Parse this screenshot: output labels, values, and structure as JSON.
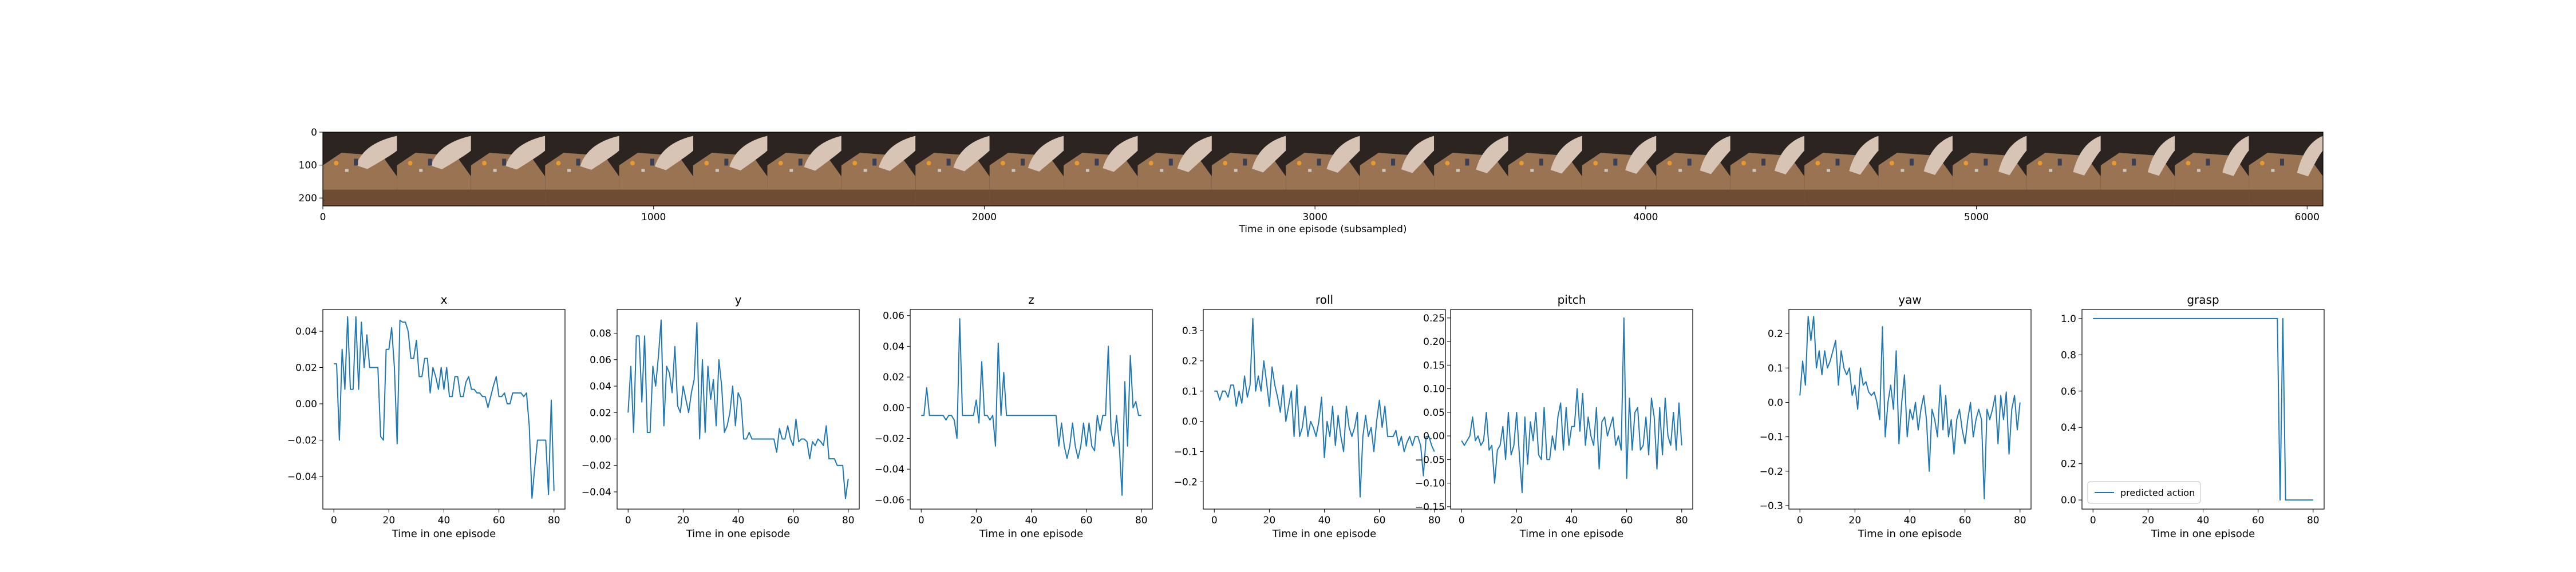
{
  "filmstrip": {
    "xlabel": "Time in one episode (subsampled)",
    "x_ticks": [
      "0",
      "1000",
      "2000",
      "3000",
      "4000",
      "5000",
      "6000"
    ],
    "y_ticks": [
      "0",
      "100",
      "200"
    ],
    "xlim": [
      0,
      6048
    ],
    "ylim": [
      0,
      224
    ],
    "frame_count": 27,
    "description_colors": {
      "background": "#2b2420",
      "table": "#9a7352",
      "robot": "#d8c4b4"
    }
  },
  "chart_data": [
    {
      "type": "line",
      "title": "x",
      "xlabel": "Time in one episode",
      "xlim": [
        -4,
        84
      ],
      "ylim": [
        -0.058,
        0.052
      ],
      "x_ticks": [
        0,
        20,
        40,
        60,
        80
      ],
      "y_ticks": [
        {
          "v": 0.04,
          "t": "0.04"
        },
        {
          "v": 0.02,
          "t": "0.02"
        },
        {
          "v": 0.0,
          "t": "0.00"
        },
        {
          "v": -0.02,
          "t": "−0.02"
        },
        {
          "v": -0.04,
          "t": "−0.04"
        }
      ],
      "series": [
        {
          "color": "#1f77b4",
          "values": [
            0.022,
            0.022,
            -0.02,
            0.03,
            0.008,
            0.048,
            0.008,
            0.008,
            0.048,
            0.008,
            0.045,
            0.02,
            0.038,
            0.02,
            0.02,
            0.02,
            0.02,
            -0.018,
            -0.02,
            0.03,
            0.03,
            0.042,
            0.02,
            -0.022,
            0.046,
            0.045,
            0.045,
            0.04,
            0.025,
            0.025,
            0.035,
            0.015,
            0.015,
            0.025,
            0.025,
            0.006,
            0.02,
            0.015,
            0.008,
            0.02,
            0.008,
            0.02,
            0.004,
            0.004,
            0.015,
            0.015,
            0.004,
            0.004,
            0.012,
            0.015,
            0.008,
            0.008,
            0.006,
            0.006,
            0.004,
            0.004,
            -0.002,
            0.004,
            0.01,
            0.015,
            0.004,
            0.004,
            0.006,
            0.0,
            0.0,
            0.006,
            0.006,
            0.006,
            0.006,
            0.004,
            0.006,
            -0.012,
            -0.052,
            -0.035,
            -0.02,
            -0.02,
            -0.02,
            -0.02,
            -0.05,
            0.002,
            -0.048
          ]
        }
      ]
    },
    {
      "type": "line",
      "title": "y",
      "xlabel": "Time in one episode",
      "xlim": [
        -4,
        84
      ],
      "ylim": [
        -0.053,
        0.098
      ],
      "x_ticks": [
        0,
        20,
        40,
        60,
        80
      ],
      "y_ticks": [
        {
          "v": 0.08,
          "t": "0.08"
        },
        {
          "v": 0.06,
          "t": "0.06"
        },
        {
          "v": 0.04,
          "t": "0.04"
        },
        {
          "v": 0.02,
          "t": "0.02"
        },
        {
          "v": 0.0,
          "t": "0.00"
        },
        {
          "v": -0.02,
          "t": "−0.02"
        },
        {
          "v": -0.04,
          "t": "−0.04"
        }
      ],
      "series": [
        {
          "color": "#1f77b4",
          "values": [
            0.02,
            0.055,
            0.005,
            0.078,
            0.078,
            0.028,
            0.078,
            0.005,
            0.005,
            0.055,
            0.04,
            0.062,
            0.09,
            0.01,
            0.055,
            0.05,
            0.035,
            0.07,
            0.025,
            0.02,
            0.04,
            0.03,
            0.02,
            0.035,
            0.045,
            0.088,
            0.0,
            0.06,
            0.005,
            0.055,
            0.03,
            0.045,
            0.01,
            0.06,
            0.04,
            0.005,
            0.01,
            0.02,
            0.04,
            0.01,
            0.035,
            0.03,
            0.0,
            0.0,
            0.005,
            0.0,
            0.0,
            0.0,
            0.0,
            0.0,
            0.0,
            0.0,
            0.0,
            0.0,
            -0.01,
            0.008,
            0.0,
            0.0,
            0.01,
            0.0,
            -0.005,
            0.015,
            -0.002,
            0.0,
            0.0,
            -0.002,
            -0.015,
            -0.002,
            -0.005,
            0.0,
            -0.002,
            -0.005,
            0.01,
            -0.015,
            -0.015,
            -0.015,
            -0.02,
            -0.02,
            -0.02,
            -0.045,
            -0.03
          ]
        }
      ]
    },
    {
      "type": "line",
      "title": "z",
      "xlabel": "Time in one episode",
      "xlim": [
        -4,
        84
      ],
      "ylim": [
        -0.066,
        0.064
      ],
      "x_ticks": [
        0,
        20,
        40,
        60,
        80
      ],
      "y_ticks": [
        {
          "v": 0.06,
          "t": "0.06"
        },
        {
          "v": 0.04,
          "t": "0.04"
        },
        {
          "v": 0.02,
          "t": "0.02"
        },
        {
          "v": 0.0,
          "t": "0.00"
        },
        {
          "v": -0.02,
          "t": "−0.02"
        },
        {
          "v": -0.04,
          "t": "−0.04"
        },
        {
          "v": -0.06,
          "t": "−0.06"
        }
      ],
      "series": [
        {
          "color": "#1f77b4",
          "values": [
            -0.005,
            -0.005,
            0.013,
            -0.005,
            -0.005,
            -0.005,
            -0.005,
            -0.005,
            -0.005,
            -0.008,
            -0.005,
            -0.005,
            -0.008,
            -0.02,
            0.058,
            -0.005,
            -0.005,
            -0.005,
            -0.005,
            -0.005,
            0.005,
            -0.01,
            0.03,
            -0.005,
            -0.005,
            -0.008,
            -0.005,
            -0.025,
            0.042,
            -0.005,
            0.023,
            -0.005,
            -0.005,
            -0.005,
            -0.005,
            -0.005,
            -0.005,
            -0.005,
            -0.005,
            -0.005,
            -0.005,
            -0.005,
            -0.005,
            -0.005,
            -0.005,
            -0.005,
            -0.005,
            -0.005,
            -0.005,
            -0.005,
            -0.025,
            -0.01,
            -0.025,
            -0.033,
            -0.025,
            -0.01,
            -0.025,
            -0.033,
            -0.025,
            -0.01,
            -0.025,
            -0.01,
            -0.025,
            -0.028,
            -0.005,
            -0.015,
            -0.005,
            -0.005,
            0.04,
            -0.015,
            -0.025,
            -0.005,
            -0.025,
            -0.057,
            0.017,
            -0.025,
            0.034,
            0.0,
            0.004,
            -0.005,
            -0.005
          ]
        }
      ]
    },
    {
      "type": "line",
      "title": "roll",
      "xlabel": "Time in one episode",
      "xlim": [
        -4,
        84
      ],
      "ylim": [
        -0.29,
        0.37
      ],
      "x_ticks": [
        0,
        20,
        40,
        60,
        80
      ],
      "y_ticks": [
        {
          "v": 0.3,
          "t": "0.3"
        },
        {
          "v": 0.2,
          "t": "0.2"
        },
        {
          "v": 0.1,
          "t": "0.1"
        },
        {
          "v": 0.0,
          "t": "0.0"
        },
        {
          "v": -0.1,
          "t": "−0.1"
        },
        {
          "v": -0.2,
          "t": "−0.2"
        }
      ],
      "series": [
        {
          "color": "#1f77b4",
          "values": [
            0.1,
            0.1,
            0.07,
            0.1,
            0.1,
            0.08,
            0.12,
            0.12,
            0.05,
            0.1,
            0.06,
            0.15,
            0.08,
            0.12,
            0.34,
            0.1,
            0.15,
            0.1,
            0.2,
            0.13,
            0.05,
            0.18,
            0.12,
            0.08,
            0.03,
            0.12,
            0.0,
            0.05,
            0.1,
            -0.05,
            0.12,
            -0.05,
            -0.02,
            0.05,
            -0.05,
            0.0,
            -0.02,
            -0.05,
            0.0,
            0.08,
            -0.12,
            0.0,
            -0.05,
            0.05,
            -0.08,
            0.02,
            -0.05,
            -0.1,
            0.05,
            -0.02,
            -0.05,
            -0.02,
            0.03,
            -0.25,
            -0.05,
            0.02,
            -0.05,
            -0.02,
            -0.1,
            0.0,
            0.07,
            -0.02,
            0.05,
            -0.05,
            -0.05,
            -0.05,
            -0.03,
            -0.08,
            -0.05,
            -0.1,
            -0.07,
            -0.05,
            -0.08,
            -0.05,
            -0.05,
            -0.08,
            -0.18,
            -0.05,
            -0.05,
            -0.08,
            -0.1
          ]
        }
      ]
    },
    {
      "type": "line",
      "title": "pitch",
      "xlabel": "Time in one episode",
      "xlim": [
        -4,
        84
      ],
      "ylim": [
        -0.155,
        0.268
      ],
      "x_ticks": [
        0,
        20,
        40,
        60,
        80
      ],
      "y_ticks": [
        {
          "v": 0.25,
          "t": "0.25"
        },
        {
          "v": 0.2,
          "t": "0.20"
        },
        {
          "v": 0.15,
          "t": "0.15"
        },
        {
          "v": 0.1,
          "t": "0.10"
        },
        {
          "v": 0.05,
          "t": "0.05"
        },
        {
          "v": 0.0,
          "t": "0.00"
        },
        {
          "v": -0.05,
          "t": "−0.05"
        },
        {
          "v": -0.1,
          "t": "−0.10"
        },
        {
          "v": -0.15,
          "t": "−0.15"
        }
      ],
      "series": [
        {
          "color": "#1f77b4",
          "values": [
            -0.01,
            -0.02,
            -0.01,
            0.0,
            0.04,
            -0.01,
            0.0,
            -0.02,
            -0.01,
            0.05,
            -0.03,
            -0.02,
            -0.1,
            -0.03,
            -0.02,
            0.02,
            -0.05,
            0.05,
            -0.04,
            -0.02,
            0.05,
            -0.04,
            -0.12,
            0.04,
            -0.06,
            0.03,
            -0.01,
            0.05,
            -0.04,
            -0.05,
            0.06,
            -0.05,
            -0.05,
            0.0,
            -0.03,
            0.04,
            0.07,
            -0.03,
            0.06,
            -0.02,
            0.02,
            0.02,
            0.1,
            0.01,
            0.09,
            -0.02,
            0.04,
            0.0,
            -0.02,
            0.06,
            -0.07,
            0.03,
            0.04,
            0.0,
            0.02,
            0.04,
            -0.02,
            0.0,
            -0.03,
            0.25,
            -0.09,
            0.08,
            -0.03,
            0.05,
            0.06,
            -0.03,
            -0.02,
            0.04,
            -0.04,
            0.08,
            0.04,
            -0.07,
            0.06,
            -0.04,
            0.08,
            0.0,
            -0.02,
            0.05,
            -0.03,
            0.07,
            -0.02
          ]
        }
      ]
    },
    {
      "type": "line",
      "title": "yaw",
      "xlabel": "Time in one episode",
      "xlim": [
        -4,
        84
      ],
      "ylim": [
        -0.31,
        0.27
      ],
      "x_ticks": [
        0,
        20,
        40,
        60,
        80
      ],
      "y_ticks": [
        {
          "v": 0.2,
          "t": "0.2"
        },
        {
          "v": 0.1,
          "t": "0.1"
        },
        {
          "v": 0.0,
          "t": "0.0"
        },
        {
          "v": -0.1,
          "t": "−0.1"
        },
        {
          "v": -0.2,
          "t": "−0.2"
        },
        {
          "v": -0.3,
          "t": "−0.3"
        }
      ],
      "series": [
        {
          "color": "#1f77b4",
          "values": [
            0.02,
            0.12,
            0.05,
            0.25,
            0.18,
            0.25,
            0.1,
            0.15,
            0.08,
            0.15,
            0.1,
            0.12,
            0.15,
            0.18,
            0.05,
            0.15,
            0.1,
            0.08,
            0.1,
            0.02,
            0.05,
            -0.02,
            0.1,
            0.05,
            0.06,
            0.03,
            0.02,
            0.03,
            0.0,
            -0.05,
            0.22,
            -0.1,
            0.0,
            0.05,
            -0.02,
            0.15,
            -0.12,
            0.0,
            0.08,
            -0.1,
            -0.02,
            -0.05,
            0.0,
            -0.08,
            -0.02,
            0.02,
            -0.05,
            -0.2,
            -0.02,
            -0.05,
            -0.1,
            0.05,
            -0.08,
            0.02,
            -0.1,
            -0.05,
            -0.15,
            -0.05,
            -0.02,
            -0.08,
            -0.12,
            -0.05,
            0.0,
            -0.1,
            -0.05,
            -0.02,
            -0.05,
            -0.28,
            -0.02,
            -0.05,
            -0.02,
            0.02,
            -0.12,
            0.02,
            -0.05,
            0.03,
            -0.15,
            -0.02,
            0.02,
            -0.08,
            0.0
          ]
        }
      ]
    },
    {
      "type": "line",
      "title": "grasp",
      "xlabel": "Time in one episode",
      "xlim": [
        -4,
        84
      ],
      "ylim": [
        -0.05,
        1.05
      ],
      "x_ticks": [
        0,
        20,
        40,
        60,
        80
      ],
      "y_ticks": [
        {
          "v": 1.0,
          "t": "1.0"
        },
        {
          "v": 0.8,
          "t": "0.8"
        },
        {
          "v": 0.6,
          "t": "0.6"
        },
        {
          "v": 0.4,
          "t": "0.4"
        },
        {
          "v": 0.2,
          "t": "0.2"
        },
        {
          "v": 0.0,
          "t": "0.0"
        }
      ],
      "legend": "predicted action",
      "legend_position": "lower left",
      "series": [
        {
          "name": "predicted action",
          "color": "#1f77b4",
          "values": [
            1,
            1,
            1,
            1,
            1,
            1,
            1,
            1,
            1,
            1,
            1,
            1,
            1,
            1,
            1,
            1,
            1,
            1,
            1,
            1,
            1,
            1,
            1,
            1,
            1,
            1,
            1,
            1,
            1,
            1,
            1,
            1,
            1,
            1,
            1,
            1,
            1,
            1,
            1,
            1,
            1,
            1,
            1,
            1,
            1,
            1,
            1,
            1,
            1,
            1,
            1,
            1,
            1,
            1,
            1,
            1,
            1,
            1,
            1,
            1,
            1,
            1,
            1,
            1,
            1,
            1,
            1,
            1,
            0,
            1,
            0,
            0,
            0,
            0,
            0,
            0,
            0,
            0,
            0,
            0,
            0
          ]
        }
      ]
    }
  ]
}
